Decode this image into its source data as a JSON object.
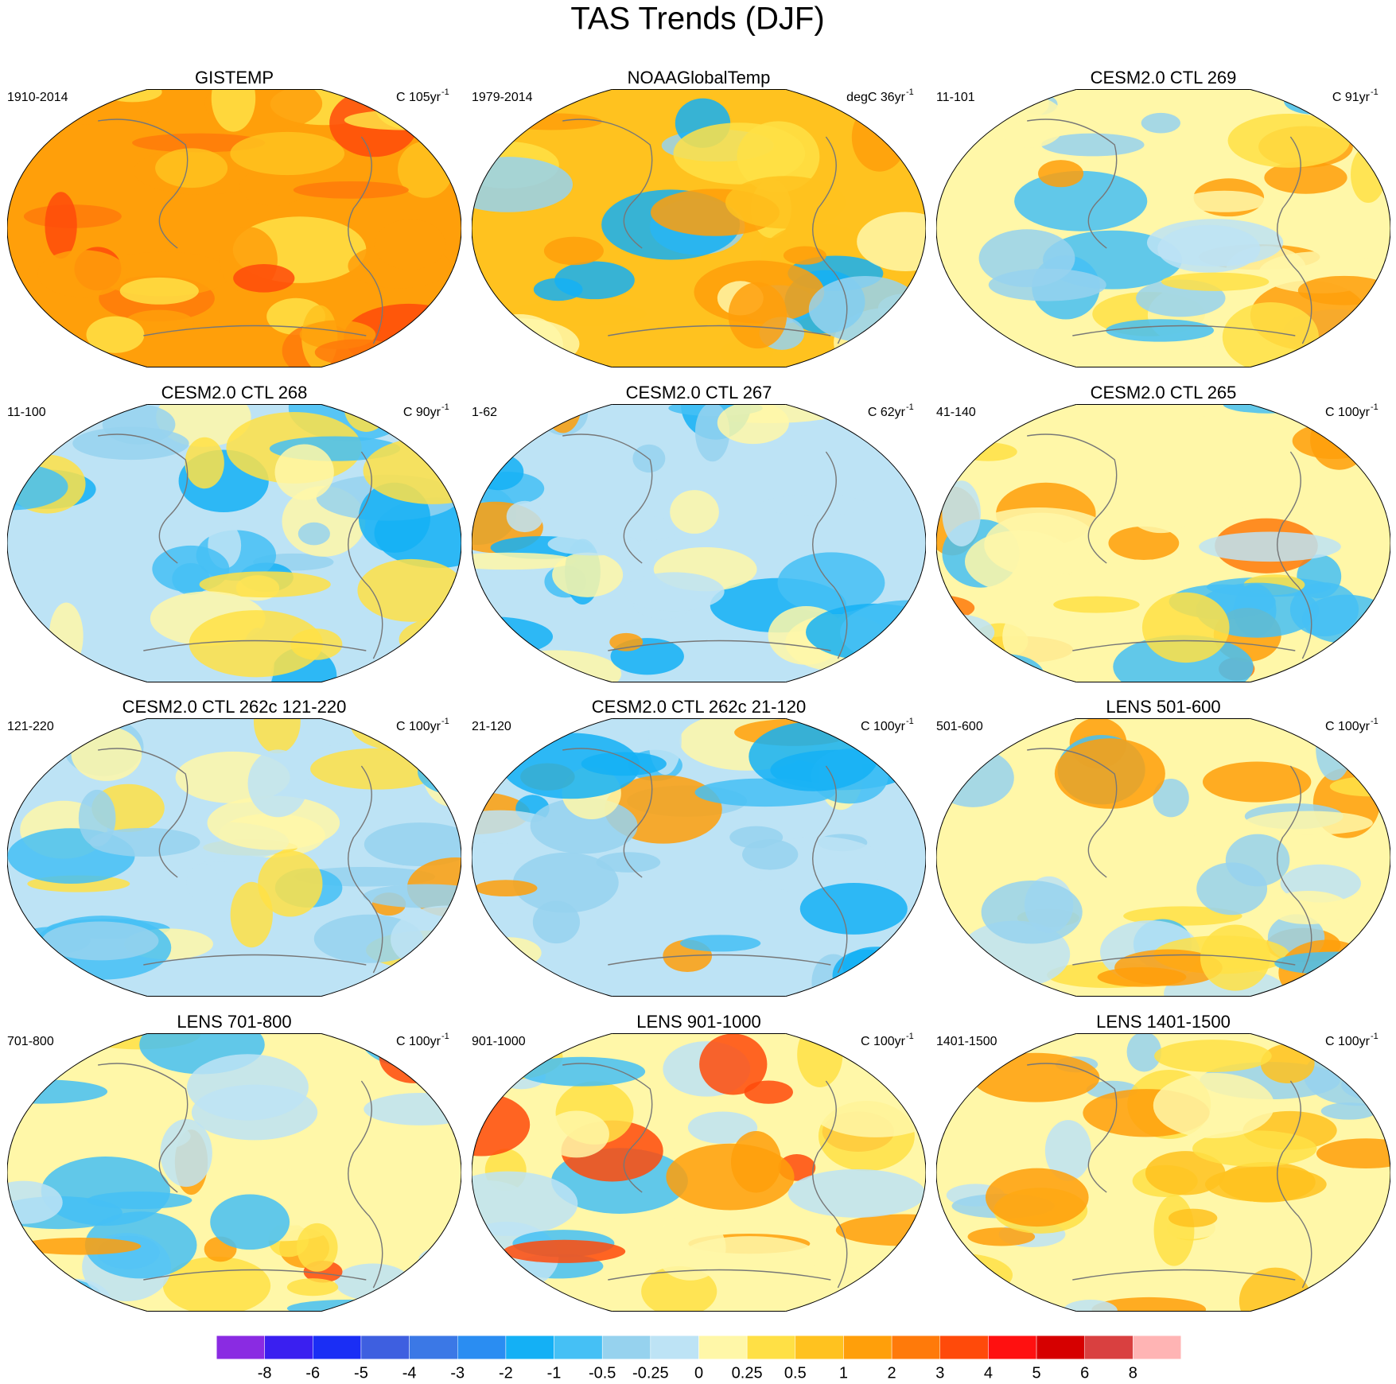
{
  "title": "TAS Trends (DJF)",
  "panels": [
    {
      "title": "GISTEMP",
      "left": "1910-2014",
      "right": "C 105yr",
      "right_sup": "-1"
    },
    {
      "title": "NOAAGlobalTemp",
      "left": "1979-2014",
      "right": "degC 36yr",
      "right_sup": "-1"
    },
    {
      "title": "CESM2.0 CTL 269",
      "left": "11-101",
      "right": "C 91yr",
      "right_sup": "-1"
    },
    {
      "title": "CESM2.0 CTL 268",
      "left": "11-100",
      "right": "C 90yr",
      "right_sup": "-1"
    },
    {
      "title": "CESM2.0 CTL 267",
      "left": "1-62",
      "right": "C 62yr",
      "right_sup": "-1"
    },
    {
      "title": "CESM2.0 CTL 265",
      "left": "41-140",
      "right": "C 100yr",
      "right_sup": "-1"
    },
    {
      "title": "CESM2.0 CTL 262c 121-220",
      "left": "121-220",
      "right": "C 100yr",
      "right_sup": "-1"
    },
    {
      "title": "CESM2.0 CTL 262c 21-120",
      "left": "21-120",
      "right": "C 100yr",
      "right_sup": "-1"
    },
    {
      "title": "LENS 501-600",
      "left": "501-600",
      "right": "C 100yr",
      "right_sup": "-1"
    },
    {
      "title": "LENS 701-800",
      "left": "701-800",
      "right": "C 100yr",
      "right_sup": "-1"
    },
    {
      "title": "LENS 901-1000",
      "left": "901-1000",
      "right": "C 100yr",
      "right_sup": "-1"
    },
    {
      "title": "LENS 1401-1500",
      "left": "1401-1500",
      "right": "C 100yr",
      "right_sup": "-1"
    }
  ],
  "colorbar": {
    "levels": [
      -8,
      -6,
      -5,
      -4,
      -3,
      -2,
      -1,
      -0.5,
      -0.25,
      0,
      0.25,
      0.5,
      1,
      2,
      3,
      4,
      5,
      6,
      8
    ],
    "colors": [
      "#8a2be2",
      "#3a1ff0",
      "#1a2ef5",
      "#3e5fe0",
      "#3b78e6",
      "#2a8df2",
      "#14b0f5",
      "#45c0f5",
      "#96d2ee",
      "#bde3f5",
      "#fff7a8",
      "#ffe045",
      "#ffc21f",
      "#ff9f0a",
      "#ff7a0a",
      "#ff4a0a",
      "#ff1010",
      "#d60000",
      "#d94040",
      "#ffb4b4"
    ]
  }
}
